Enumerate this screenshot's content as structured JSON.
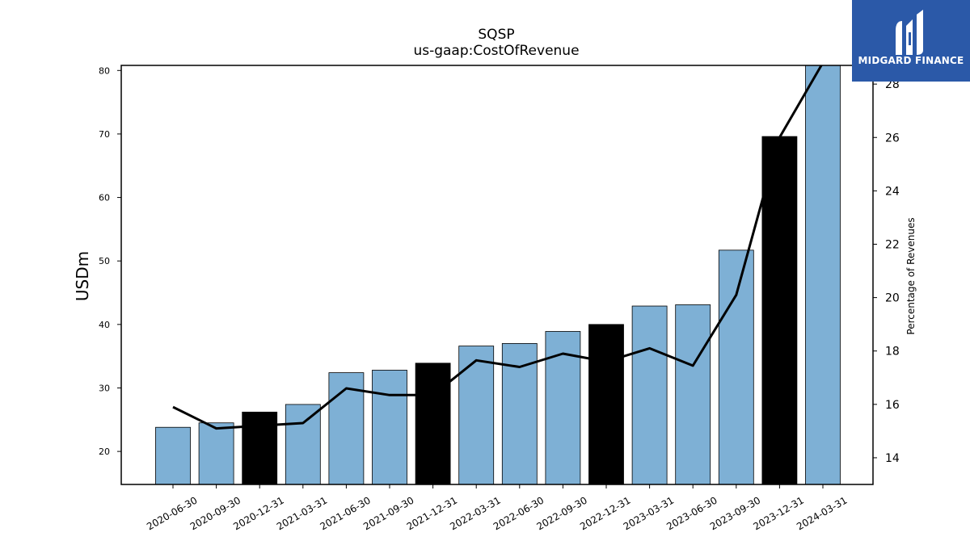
{
  "chart_data": {
    "type": "bar",
    "title": "SQSP",
    "subtitle": "us-gaap:CostOfRevenue",
    "ylabel": "USDm",
    "y2label": "Percentage of Revenues",
    "ylim": [
      14.8,
      80.8
    ],
    "y2lim": [
      13.0,
      28.7
    ],
    "yticks": [
      20,
      30,
      40,
      50,
      60,
      70,
      80
    ],
    "y2ticks": [
      14,
      16,
      18,
      20,
      22,
      24,
      26,
      28
    ],
    "categories": [
      "2020-06-30",
      "2020-09-30",
      "2020-12-31",
      "2021-03-31",
      "2021-06-30",
      "2021-09-30",
      "2021-12-31",
      "2022-03-31",
      "2022-06-30",
      "2022-09-30",
      "2022-12-31",
      "2023-03-31",
      "2023-06-30",
      "2023-09-30",
      "2023-12-31",
      "2024-03-31"
    ],
    "series": [
      {
        "kind": "bar",
        "values": [
          23.8,
          24.5,
          26.2,
          27.4,
          32.4,
          32.8,
          33.9,
          36.6,
          37.0,
          38.9,
          40.0,
          42.9,
          43.1,
          51.7,
          69.6,
          81.0
        ],
        "colors": [
          "#7eb0d5",
          "#7eb0d5",
          "#000000",
          "#7eb0d5",
          "#7eb0d5",
          "#7eb0d5",
          "#000000",
          "#7eb0d5",
          "#7eb0d5",
          "#7eb0d5",
          "#000000",
          "#7eb0d5",
          "#7eb0d5",
          "#7eb0d5",
          "#000000",
          "#7eb0d5"
        ]
      },
      {
        "kind": "line",
        "axis": "right",
        "color": "#000000",
        "values": [
          15.9,
          15.1,
          15.2,
          15.3,
          16.6,
          16.35,
          16.35,
          17.65,
          17.4,
          17.9,
          17.6,
          18.1,
          17.45,
          20.1,
          26.0,
          28.8
        ]
      }
    ],
    "grid": false
  },
  "logo": {
    "text": "MIDGARD FINANCE",
    "background": "#2b59a8",
    "icon": "midgard-logo-icon"
  }
}
